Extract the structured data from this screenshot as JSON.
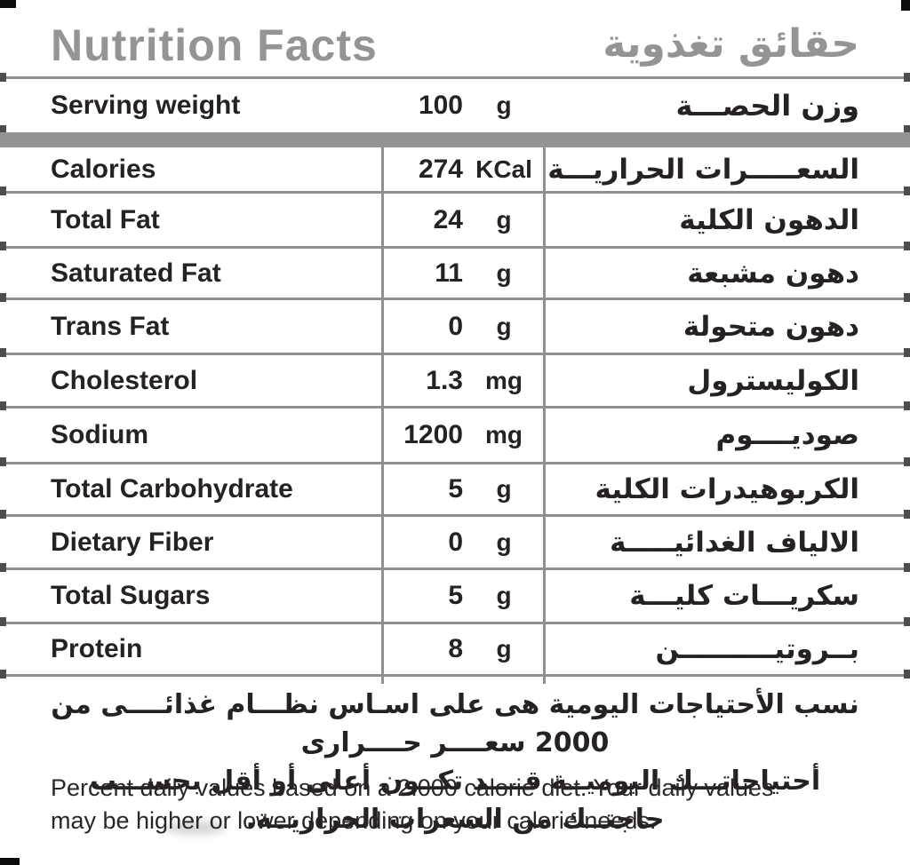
{
  "header": {
    "title_en": "Nutrition Facts",
    "title_ar": "حقائق تغذوية"
  },
  "serving": {
    "label_en": "Serving weight",
    "value": "100",
    "unit": "g",
    "label_ar": "وزن الحصـــة"
  },
  "table": {
    "rows": [
      {
        "en": "Calories",
        "value": "274",
        "unit": "KCal",
        "ar": "السعـــــرات الحراريـــة"
      },
      {
        "en": "Total Fat",
        "value": "24",
        "unit": "g",
        "ar": "الدهون الكلية"
      },
      {
        "en": "Saturated Fat",
        "value": "11",
        "unit": "g",
        "ar": "دهون مشبعة"
      },
      {
        "en": "Trans Fat",
        "value": "0",
        "unit": "g",
        "ar": "دهون متحولة"
      },
      {
        "en": "Cholesterol",
        "value": "1.3",
        "unit": "mg",
        "ar": "الكوليسترول"
      },
      {
        "en": "Sodium",
        "value": "1200",
        "unit": "mg",
        "ar": "صوديــــوم"
      },
      {
        "en": "Total Carbohydrate",
        "value": "5",
        "unit": "g",
        "ar": "الكربوهيدرات الكلية"
      },
      {
        "en": "Dietary Fiber",
        "value": "0",
        "unit": "g",
        "ar": "الالياف الغدائيـــــة"
      },
      {
        "en": "Total Sugars",
        "value": "5",
        "unit": "g",
        "ar": "سكريـــات كليـــة"
      },
      {
        "en": "Protein",
        "value": "8",
        "unit": "g",
        "ar": "بــروتيــــــــــن"
      }
    ]
  },
  "footer": {
    "ar_line1": "نسب الأحتياجات اليومية هى على اسـاس نظـــام غذائــــى من 2000 سعــــر حــــرارى",
    "ar_line2": "أحتياجاتـــك اليوميــة قــــد تكــون أعلى أو أقل بحســـب حاجتــك من السعرات الحراريــة.",
    "en_line1": "Percent daily values based on a 2.000 calorie diet. Your daily values",
    "en_line2": "may be higher or lower depending on your calorie needs."
  },
  "colors": {
    "title_gray": "#949494",
    "line_gray": "#8f8f8f",
    "thick_bar_gray": "#949494",
    "text_dark": "#262223"
  }
}
